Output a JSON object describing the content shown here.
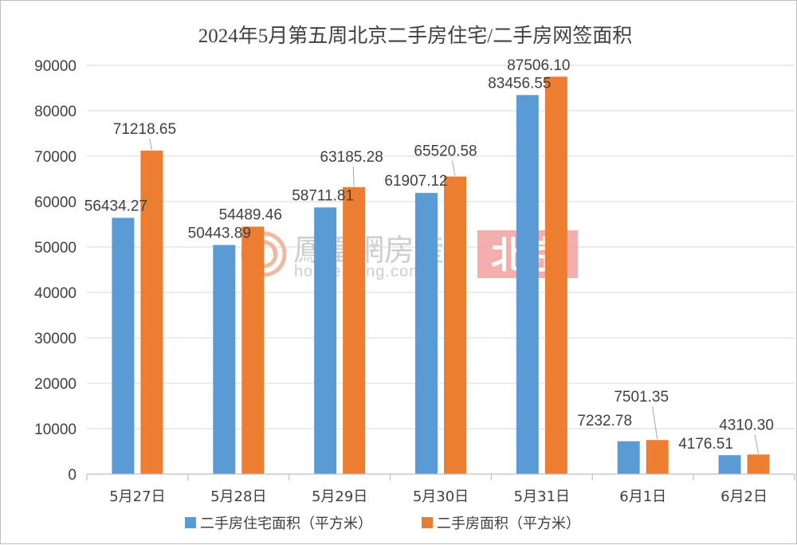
{
  "colors": {
    "series_residential": "#5b9bd5",
    "series_total": "#ed7d31",
    "gridline": "#d9d9d9",
    "axis": "#bfbfbf",
    "text": "#404040",
    "watermark_city_bg": "#f4a6a6"
  },
  "watermark": {
    "brand": "鳳凰網房産",
    "url": "house.ifeng.com",
    "city": "北京",
    "logo_icon": "phoenix-logo-icon"
  },
  "chart_data": {
    "type": "bar",
    "title": "2024年5月第五周北京二手房住宅/二手房网签面积",
    "categories": [
      "5月27日",
      "5月28日",
      "5月29日",
      "5月30日",
      "5月31日",
      "6月1日",
      "6月2日"
    ],
    "series": [
      {
        "name": "二手房住宅面积（平方米）",
        "values": [
          56434.27,
          50443.89,
          58711.81,
          61907.12,
          83456.55,
          7232.78,
          4176.51
        ],
        "labels": [
          "56434.27",
          "50443.89",
          "58711.81",
          "61907.12",
          "83456.55",
          "7232.78",
          "4176.51"
        ]
      },
      {
        "name": "二手房面积（平方米）",
        "values": [
          71218.65,
          54489.46,
          63185.28,
          65520.58,
          87506.1,
          7501.35,
          4310.3
        ],
        "labels": [
          "71218.65",
          "54489.46",
          "63185.28",
          "65520.58",
          "87506.10",
          "7501.35",
          "4310.30"
        ]
      }
    ],
    "ylim": [
      0,
      90000
    ],
    "yticks": [
      "0",
      "10000",
      "20000",
      "30000",
      "40000",
      "50000",
      "60000",
      "70000",
      "80000",
      "90000"
    ],
    "grid": true,
    "legend_position": "bottom"
  }
}
